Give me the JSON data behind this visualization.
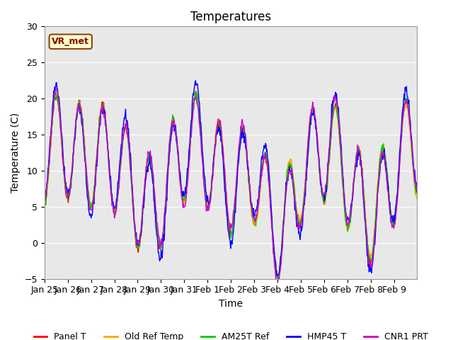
{
  "title": "Temperatures",
  "xlabel": "Time",
  "ylabel": "Temperature (C)",
  "ylim": [
    -5,
    30
  ],
  "yticks": [
    -5,
    0,
    5,
    10,
    15,
    20,
    25,
    30
  ],
  "legend_labels": [
    "Panel T",
    "Old Ref Temp",
    "AM25T Ref",
    "HMP45 T",
    "CNR1 PRT"
  ],
  "legend_colors": [
    "#ff0000",
    "#ffa500",
    "#00cc00",
    "#0000ff",
    "#cc00cc"
  ],
  "annotation_text": "VR_met",
  "plot_bg_color": "#e8e8e8",
  "tick_dates": [
    "Jan 25",
    "Jan 26",
    "Jan 27",
    "Jan 28",
    "Jan 29",
    "Jan 30",
    "Jan 31",
    "Feb 1",
    "Feb 2",
    "Feb 3",
    "Feb 4",
    "Feb 5",
    "Feb 6",
    "Feb 7",
    "Feb 8",
    "Feb 9"
  ],
  "title_fontsize": 12,
  "axis_label_fontsize": 10,
  "tick_fontsize": 9
}
